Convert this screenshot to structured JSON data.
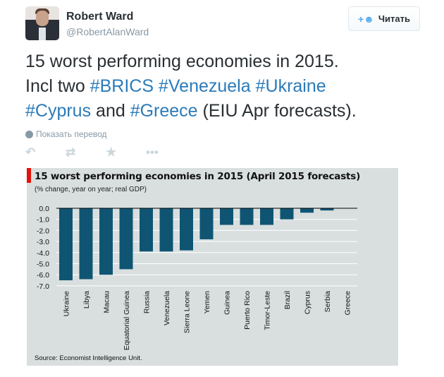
{
  "user": {
    "name": "Robert Ward",
    "handle": "@RobertAlanWard"
  },
  "follow_button": {
    "label": "Читать",
    "icon": "add-user-icon"
  },
  "tweet": {
    "t1": "15 worst performing economies in 2015.",
    "t2": "Incl two ",
    "h1": "#BRICS",
    "h2": "#Venezuela",
    "h3": "#Ukraine",
    "h4": "#Cyprus",
    "t3": " and ",
    "h5": "#Greece",
    "t4": " (EIU Apr forecasts)."
  },
  "translate": "Показать перевод",
  "actions": [
    "reply-icon",
    "retweet-icon",
    "favorite-icon",
    "more-icon"
  ],
  "colors": {
    "bar": "#0f5573",
    "hashtag": "#2b7bb9",
    "accent": "#e3120b"
  },
  "chart_data": {
    "type": "bar",
    "title": "15 worst performing  economies in 2015 (April 2015 forecasts)",
    "subtitle": "(% change, year on year; real GDP)",
    "source": "Source: Economist Intelligence Unit.",
    "categories": [
      "Ukraine",
      "Libya",
      "Macau",
      "Equatorial Guinea",
      "Russia",
      "Venezuela",
      "Sierra Leone",
      "Yemen",
      "Guinea",
      "Puerto Rico",
      "Timor-Leste",
      "Brazil",
      "Cyprus",
      "Serbia",
      "Greece"
    ],
    "values": [
      -6.5,
      -6.4,
      -6.0,
      -5.5,
      -3.9,
      -3.9,
      -3.8,
      -2.8,
      -1.5,
      -1.5,
      -1.5,
      -1.0,
      -0.4,
      -0.2,
      0.0
    ],
    "yticks": [
      "0.0",
      "-1.0",
      "-2.0",
      "-3.0",
      "-4.0",
      "-5.0",
      "-6.0",
      "-7.0"
    ],
    "ylim": [
      -7,
      0
    ],
    "grid": true
  }
}
